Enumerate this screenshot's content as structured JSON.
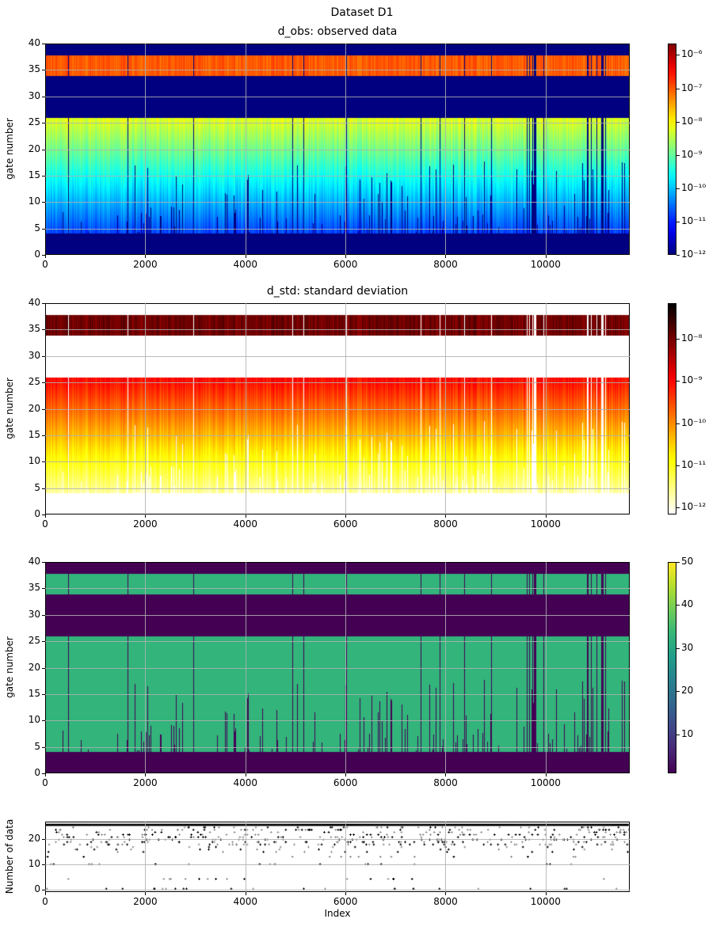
{
  "suptitle": "Dataset D1",
  "chart_data": [
    {
      "type": "heatmap",
      "title": "d_obs: observed data",
      "xlabel": "",
      "ylabel": "gate number",
      "xlim": [
        0,
        11680
      ],
      "ylim": [
        0,
        40
      ],
      "xticks": [
        "0",
        "2000",
        "4000",
        "6000",
        "8000",
        "10000"
      ],
      "yticks": [
        "0",
        "5",
        "10",
        "15",
        "20",
        "25",
        "30",
        "35",
        "40"
      ],
      "grid": true,
      "colormap": "jet",
      "color_scale": "log",
      "clim": [
        1e-12,
        2.2e-06
      ],
      "colorbar_ticks": [
        "10⁻¹²",
        "10⁻¹¹",
        "10⁻¹⁰",
        "10⁻⁹",
        "10⁻⁸",
        "10⁻⁷",
        "10⁻⁶"
      ]
    },
    {
      "type": "heatmap",
      "title": "d_std: standard deviation",
      "xlabel": "",
      "ylabel": "gate number",
      "xlim": [
        0,
        11680
      ],
      "ylim": [
        0,
        40
      ],
      "xticks": [
        "0",
        "2000",
        "4000",
        "6000",
        "8000",
        "10000"
      ],
      "yticks": [
        "0",
        "5",
        "10",
        "15",
        "20",
        "25",
        "30",
        "35",
        "40"
      ],
      "grid": true,
      "colormap": "hot_r",
      "color_scale": "log",
      "clim": [
        6.8e-13,
        7e-08
      ],
      "colorbar_ticks": [
        "10⁻¹²",
        "10⁻¹¹",
        "10⁻¹⁰",
        "10⁻⁹",
        "10⁻⁸"
      ]
    },
    {
      "type": "heatmap",
      "title": "",
      "xlabel": "",
      "ylabel": "gate number",
      "xlim": [
        0,
        11680
      ],
      "ylim": [
        0,
        40
      ],
      "xticks": [
        "0",
        "2000",
        "4000",
        "6000",
        "8000",
        "10000"
      ],
      "yticks": [
        "0",
        "5",
        "10",
        "15",
        "20",
        "25",
        "30",
        "35",
        "40"
      ],
      "grid": true,
      "colormap": "viridis",
      "color_scale": "linear",
      "clim": [
        1,
        50
      ],
      "colorbar_ticks": [
        "10",
        "20",
        "30",
        "40",
        "50"
      ]
    },
    {
      "type": "scatter",
      "title": "",
      "xlabel": "Index",
      "ylabel": "Number of data",
      "xlim": [
        0,
        11680
      ],
      "ylim": [
        -1,
        27
      ],
      "xticks": [
        "0",
        "2000",
        "4000",
        "6000",
        "8000",
        "10000"
      ],
      "yticks": [
        "0",
        "10",
        "20"
      ],
      "grid": true,
      "marker": "+",
      "dominant_value": 26,
      "other_levels": [
        0,
        4,
        10,
        13,
        15,
        16,
        18,
        19,
        20,
        21,
        22,
        24,
        25
      ]
    }
  ]
}
